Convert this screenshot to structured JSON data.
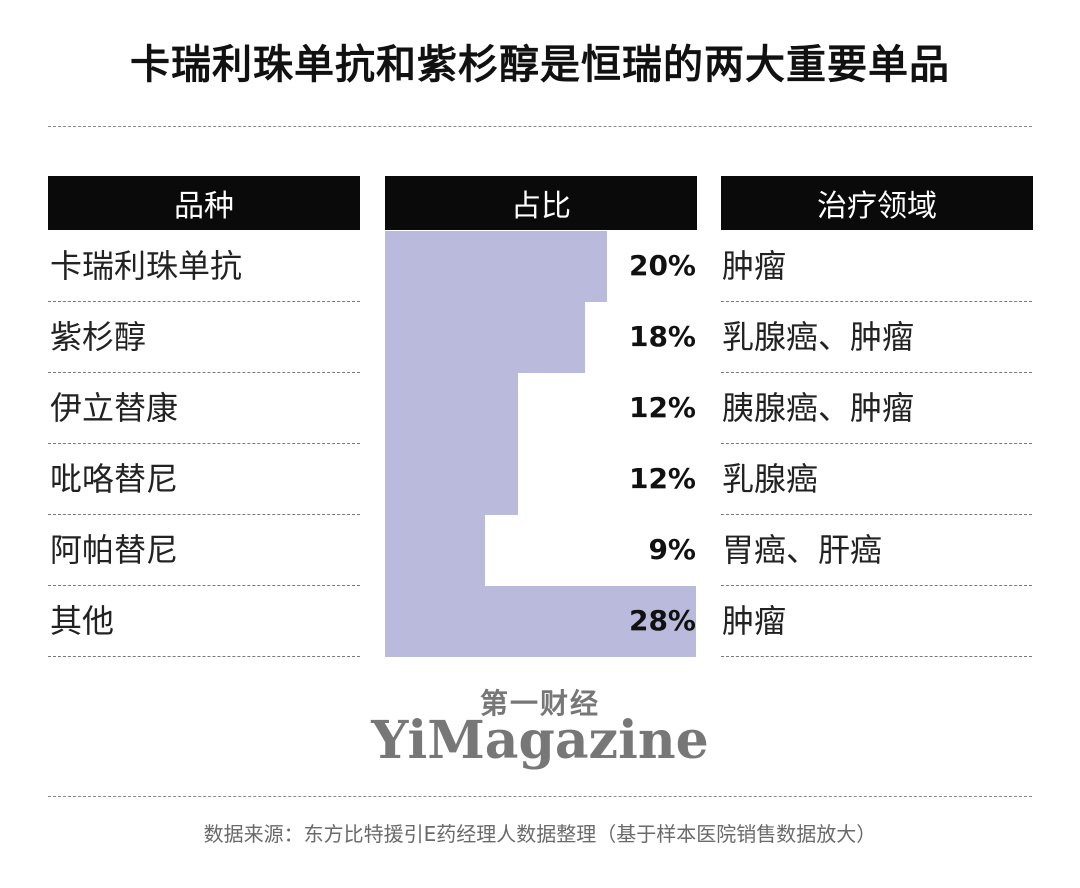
{
  "title": "卡瑞利珠单抗和紫杉醇是恒瑞的两大重要单品",
  "headers": {
    "product": "品种",
    "share": "占比",
    "area": "治疗领域"
  },
  "colors": {
    "bar": "#babbdc",
    "header_bg": "#0a0a0a",
    "header_text": "#ffffff"
  },
  "chart_data": {
    "type": "table",
    "columns": [
      "品种",
      "占比",
      "治疗领域"
    ],
    "rows": [
      {
        "name": "卡瑞利珠单抗",
        "share": 20,
        "label": "20%",
        "area": "肿瘤"
      },
      {
        "name": "紫杉醇",
        "share": 18,
        "label": "18%",
        "area": "乳腺癌、肿瘤"
      },
      {
        "name": "伊立替康",
        "share": 12,
        "label": "12%",
        "area": "胰腺癌、肿瘤"
      },
      {
        "name": "吡咯替尼",
        "share": 12,
        "label": "12%",
        "area": "乳腺癌"
      },
      {
        "name": "阿帕替尼",
        "share": 9,
        "label": "9%",
        "area": "胃癌、肝癌"
      },
      {
        "name": "其他",
        "share": 28,
        "label": "28%",
        "area": "肿瘤"
      }
    ],
    "bar_max": 28
  },
  "logo": {
    "cn": "第一财经",
    "en": "YiMagazine"
  },
  "source": "数据来源：东方比特援引E药经理人数据整理（基于样本医院销售数据放大）"
}
